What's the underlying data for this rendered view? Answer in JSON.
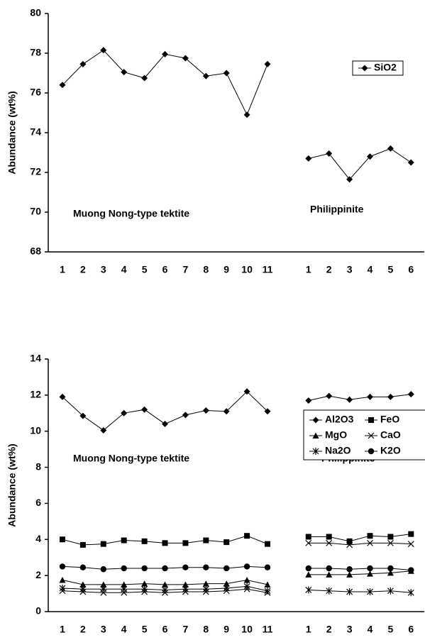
{
  "chart_data": [
    {
      "type": "line",
      "y_label": "Abundance (wt%)",
      "categories": [
        "1",
        "2",
        "3",
        "4",
        "5",
        "6",
        "7",
        "8",
        "9",
        "10",
        "11",
        null,
        "1",
        "2",
        "3",
        "4",
        "5",
        "6"
      ],
      "series": [
        {
          "name": "SiO2",
          "color": "#000000",
          "marker": "diamond",
          "values": [
            76.4,
            77.45,
            78.15,
            77.05,
            76.75,
            77.95,
            77.75,
            76.85,
            77.0,
            74.9,
            77.45,
            null,
            72.7,
            72.95,
            71.65,
            72.8,
            73.2,
            72.5
          ]
        }
      ],
      "annotations": [
        "Muong Nong-type tektite",
        "Philippinite"
      ],
      "ylim": [
        68,
        80
      ],
      "yticks": [
        68,
        70,
        72,
        74,
        76,
        78,
        80
      ],
      "legend": "upper right"
    },
    {
      "type": "line",
      "y_label": "Abundance (wt%)",
      "categories": [
        "1",
        "2",
        "3",
        "4",
        "5",
        "6",
        "7",
        "8",
        "9",
        "10",
        "11",
        null,
        "1",
        "2",
        "3",
        "4",
        "5",
        "6"
      ],
      "series": [
        {
          "name": "Al2O3",
          "color": "#000000",
          "marker": "diamond",
          "values": [
            11.9,
            10.85,
            10.05,
            11.0,
            11.2,
            10.4,
            10.9,
            11.15,
            11.1,
            12.2,
            11.1,
            null,
            11.7,
            11.95,
            11.75,
            11.9,
            11.9,
            12.05
          ]
        },
        {
          "name": "FeO",
          "color": "#000000",
          "marker": "square",
          "values": [
            4.0,
            3.7,
            3.75,
            3.95,
            3.9,
            3.8,
            3.8,
            3.95,
            3.85,
            4.2,
            3.75,
            null,
            4.15,
            4.15,
            3.9,
            4.2,
            4.15,
            4.3
          ]
        },
        {
          "name": "MgO",
          "color": "#000000",
          "marker": "triangle",
          "values": [
            1.75,
            1.5,
            1.5,
            1.5,
            1.55,
            1.5,
            1.5,
            1.55,
            1.55,
            1.75,
            1.5,
            null,
            2.05,
            2.05,
            2.05,
            2.1,
            2.15,
            2.25
          ]
        },
        {
          "name": "CaO",
          "color": "#000000",
          "marker": "x",
          "values": [
            1.15,
            1.1,
            1.05,
            1.05,
            1.1,
            1.05,
            1.1,
            1.1,
            1.15,
            1.25,
            1.05,
            null,
            3.8,
            3.8,
            3.7,
            3.8,
            3.8,
            3.75
          ]
        },
        {
          "name": "Na2O",
          "color": "#000000",
          "marker": "asterisk",
          "values": [
            1.3,
            1.25,
            1.25,
            1.25,
            1.25,
            1.2,
            1.25,
            1.25,
            1.3,
            1.4,
            1.15,
            null,
            1.2,
            1.15,
            1.1,
            1.1,
            1.15,
            1.05
          ]
        },
        {
          "name": "K2O",
          "color": "#000000",
          "marker": "circle",
          "values": [
            2.5,
            2.45,
            2.35,
            2.4,
            2.4,
            2.4,
            2.45,
            2.45,
            2.4,
            2.5,
            2.45,
            null,
            2.4,
            2.4,
            2.35,
            2.4,
            2.4,
            2.3
          ]
        }
      ],
      "annotations": [
        "Muong Nong-type tektite",
        "Philippinite"
      ],
      "ylim": [
        0,
        14
      ],
      "yticks": [
        0,
        2,
        4,
        6,
        8,
        10,
        12,
        14
      ],
      "legend": "center right"
    }
  ]
}
